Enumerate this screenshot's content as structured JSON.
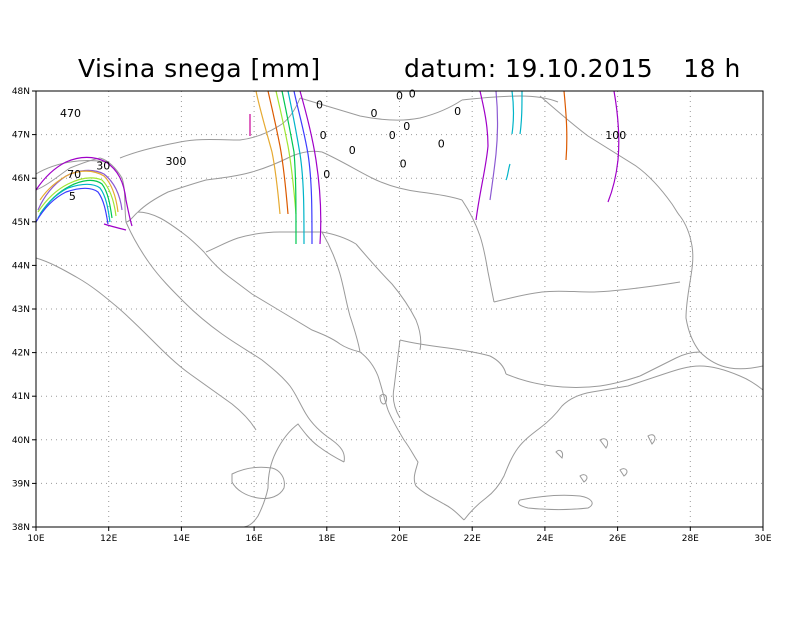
{
  "title": {
    "label": "Visina snega [mm]",
    "date_label": "datum: 19.10.2015",
    "hour_label": "18 h"
  },
  "map": {
    "lon_range": [
      10,
      30
    ],
    "lat_range": [
      38,
      48
    ],
    "lon_ticks": [
      "10E",
      "12E",
      "14E",
      "16E",
      "18E",
      "20E",
      "22E",
      "24E",
      "26E",
      "28E",
      "30E"
    ],
    "lat_ticks": [
      "38N",
      "39N",
      "40N",
      "41N",
      "42N",
      "43N",
      "44N",
      "45N",
      "46N",
      "47N",
      "48N"
    ],
    "grid": "dotted",
    "contour_colors": [
      "#a000c8",
      "#8c5ad2",
      "#00b4c8",
      "#00c850",
      "#a0e632",
      "#e6aa32",
      "#dc5a00",
      "#c80096"
    ],
    "contour_labels": [
      {
        "text": "470",
        "lon": 10.95,
        "lat": 47.4
      },
      {
        "text": "300",
        "lon": 13.85,
        "lat": 46.3
      },
      {
        "text": "70",
        "lon": 11.05,
        "lat": 46.0
      },
      {
        "text": "30",
        "lon": 11.85,
        "lat": 46.2
      },
      {
        "text": "5",
        "lon": 11.0,
        "lat": 45.5
      },
      {
        "text": "100",
        "lon": 25.95,
        "lat": 46.9
      },
      {
        "text": "0",
        "lon": 17.8,
        "lat": 47.6
      },
      {
        "text": "0",
        "lon": 17.9,
        "lat": 46.9
      },
      {
        "text": "0",
        "lon": 18.0,
        "lat": 46.0
      },
      {
        "text": "0",
        "lon": 18.7,
        "lat": 46.55
      },
      {
        "text": "0",
        "lon": 19.3,
        "lat": 47.4
      },
      {
        "text": "0",
        "lon": 19.8,
        "lat": 46.9
      },
      {
        "text": "0",
        "lon": 20.0,
        "lat": 47.8
      },
      {
        "text": "0",
        "lon": 20.35,
        "lat": 47.85
      },
      {
        "text": "0",
        "lon": 20.2,
        "lat": 47.1
      },
      {
        "text": "0",
        "lon": 20.1,
        "lat": 46.25
      },
      {
        "text": "0",
        "lon": 21.15,
        "lat": 46.7
      },
      {
        "text": "0",
        "lon": 21.6,
        "lat": 47.45
      }
    ]
  }
}
